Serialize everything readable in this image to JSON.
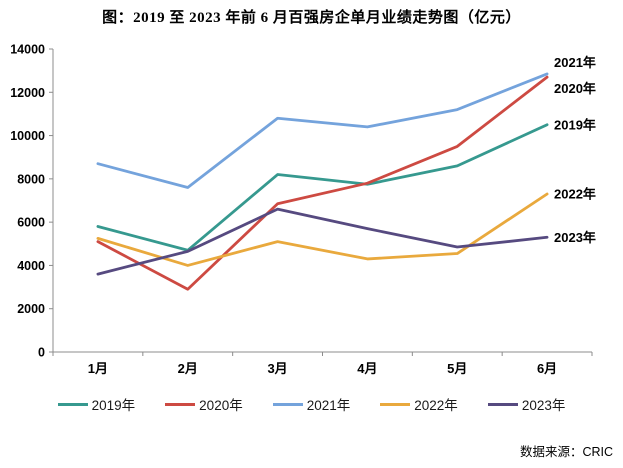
{
  "source": {
    "text": "数据来源：CRIC"
  },
  "chart_data": {
    "type": "line",
    "title": "图：2019 至 2023 年前 6 月百强房企单月业绩走势图（亿元）",
    "categories": [
      "1月",
      "2月",
      "3月",
      "4月",
      "5月",
      "6月"
    ],
    "series": [
      {
        "name": "2019年",
        "color": "#36998f",
        "values": [
          5800,
          4700,
          8200,
          7750,
          8600,
          10500
        ]
      },
      {
        "name": "2020年",
        "color": "#cd4a42",
        "values": [
          5100,
          2900,
          6850,
          7800,
          9500,
          12700
        ]
      },
      {
        "name": "2021年",
        "color": "#74a3dc",
        "values": [
          8700,
          7600,
          10800,
          10400,
          11200,
          12850
        ]
      },
      {
        "name": "2022年",
        "color": "#e9a93d",
        "values": [
          5250,
          4000,
          5100,
          4300,
          4550,
          7300
        ]
      },
      {
        "name": "2023年",
        "color": "#564a80",
        "values": [
          3600,
          4650,
          6600,
          5700,
          4850,
          5300
        ]
      }
    ],
    "ylim": [
      0,
      14000
    ],
    "ytick_step": 2000,
    "yticks": [
      "0",
      "2000",
      "4000",
      "6000",
      "8000",
      "10000",
      "12000",
      "14000"
    ],
    "grid": false,
    "legend_position": "bottom",
    "end_labels_right": [
      "2021年",
      "2020年",
      "2019年",
      "2022年",
      "2023年"
    ],
    "axis_color": "#8c8c8c",
    "text_color": "#000000"
  }
}
